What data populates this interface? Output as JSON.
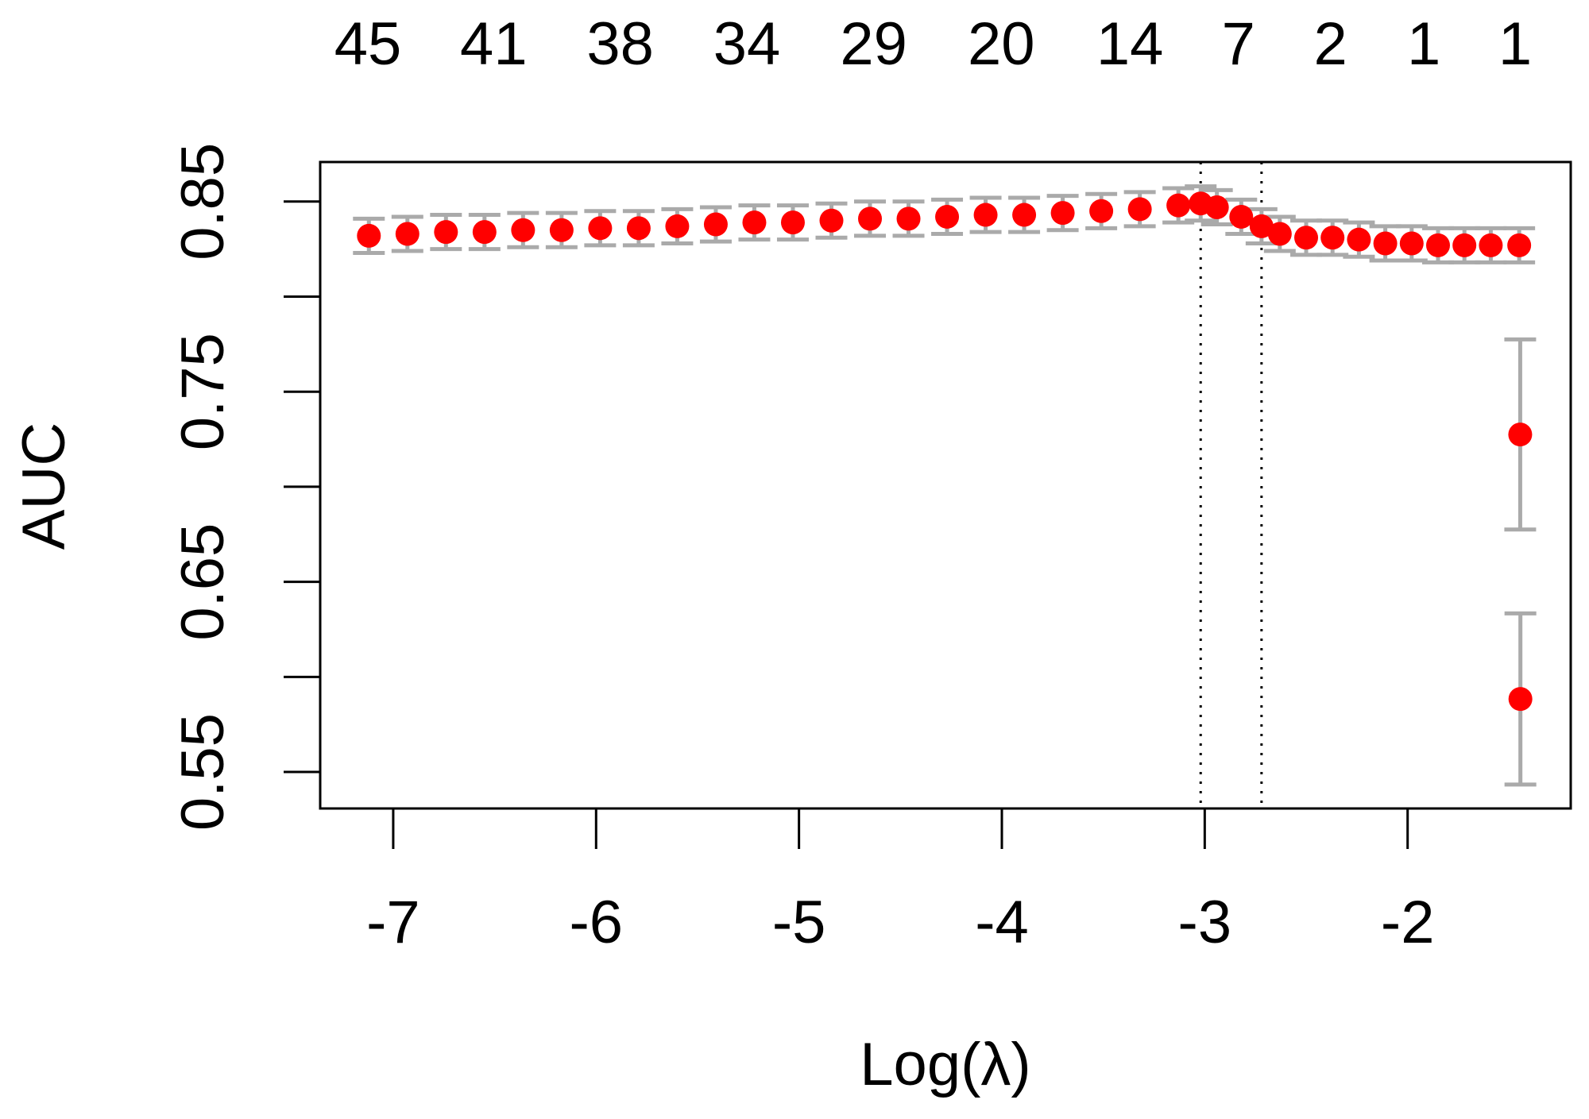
{
  "chart_data": {
    "type": "scatter",
    "xlabel": "Log(λ)",
    "ylabel": "AUC",
    "x": [
      -7.12,
      -6.93,
      -6.74,
      -6.55,
      -6.36,
      -6.17,
      -5.98,
      -5.79,
      -5.6,
      -5.41,
      -5.22,
      -5.03,
      -4.84,
      -4.65,
      -4.46,
      -4.27,
      -4.08,
      -3.89,
      -3.7,
      -3.51,
      -3.32,
      -3.13,
      -3.02,
      -2.94,
      -2.82,
      -2.72,
      -2.63,
      -2.5,
      -2.37,
      -2.24,
      -2.11,
      -1.98,
      -1.85,
      -1.72,
      -1.59,
      -1.45,
      -1.445,
      -1.444
    ],
    "series": [
      {
        "color": "#ff0000",
        "error_color": "#aaaaaa",
        "values": [
          0.832,
          0.833,
          0.834,
          0.834,
          0.835,
          0.835,
          0.836,
          0.836,
          0.837,
          0.838,
          0.839,
          0.839,
          0.84,
          0.841,
          0.841,
          0.842,
          0.843,
          0.843,
          0.844,
          0.845,
          0.846,
          0.848,
          0.849,
          0.847,
          0.842,
          0.837,
          0.833,
          0.831,
          0.831,
          0.83,
          0.828,
          0.828,
          0.827,
          0.827,
          0.827,
          0.827,
          0.7275,
          0.5884
        ],
        "errors": [
          0.009,
          0.009,
          0.009,
          0.009,
          0.009,
          0.009,
          0.009,
          0.009,
          0.009,
          0.009,
          0.009,
          0.009,
          0.009,
          0.009,
          0.009,
          0.009,
          0.009,
          0.009,
          0.009,
          0.009,
          0.009,
          0.009,
          0.009,
          0.009,
          0.009,
          0.009,
          0.009,
          0.009,
          0.009,
          0.009,
          0.009,
          0.009,
          0.009,
          0.009,
          0.009,
          0.009,
          0.05,
          0.045
        ]
      }
    ],
    "xlim": [
      -7.36,
      -1.196
    ],
    "ylim": [
      0.5308,
      0.8708
    ],
    "xticks": [
      -7,
      -6,
      -5,
      -4,
      -3,
      -2
    ],
    "yticks": [
      0.85,
      {
        "value": 0.8,
        "label": null
      },
      0.75,
      {
        "value": 0.7,
        "label": null
      },
      0.65,
      {
        "value": 0.6,
        "label": null
      },
      0.55
    ],
    "top_ticks": [
      {
        "value": -7.125,
        "label": "45"
      },
      {
        "value": -6.505,
        "label": "41"
      },
      {
        "value": -5.881,
        "label": "38"
      },
      {
        "value": -5.257,
        "label": "34"
      },
      {
        "value": -4.632,
        "label": "29"
      },
      {
        "value": -4.003,
        "label": "20"
      },
      {
        "value": -3.369,
        "label": "14"
      },
      {
        "value": -2.834,
        "label": "7"
      },
      {
        "value": -2.38,
        "label": "2"
      },
      {
        "value": -1.92,
        "label": "1"
      },
      {
        "value": -1.47,
        "label": "1"
      }
    ],
    "vlines": [
      -3.02,
      -2.72
    ]
  }
}
